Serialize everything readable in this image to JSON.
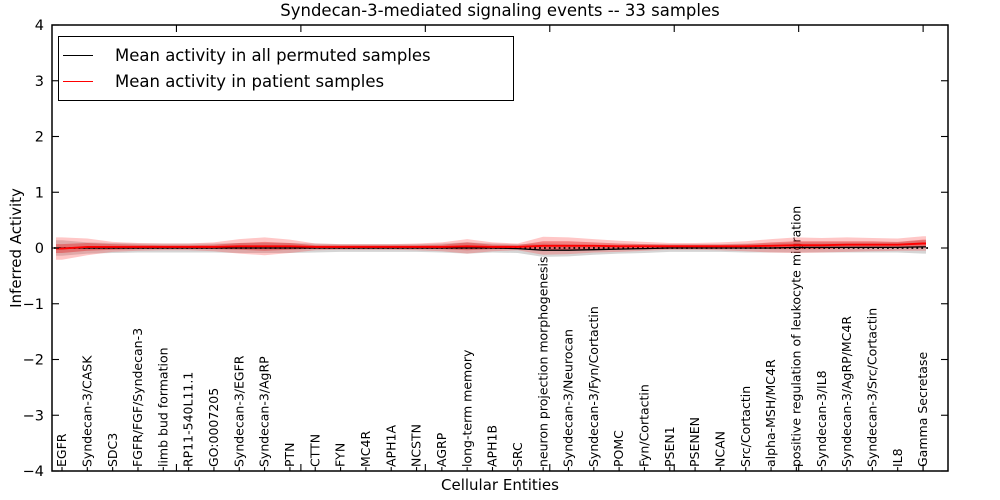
{
  "chart_data": {
    "type": "line",
    "title": "Syndecan-3-mediated signaling events -- 33 samples",
    "xlabel": "Cellular Entities",
    "ylabel": "Inferred Activity",
    "ylim": [
      -4,
      4
    ],
    "xlim": [
      0,
      36
    ],
    "yticks": [
      4,
      3,
      2,
      1,
      0,
      -1,
      -2,
      -3,
      -4
    ],
    "ytick_labels": [
      "4",
      "3",
      "2",
      "1",
      "0",
      "−1",
      "−2",
      "−3",
      "−4"
    ],
    "xticks": [
      5,
      10,
      15,
      20,
      25,
      30,
      35
    ],
    "grid": false,
    "legend_position": "upper left",
    "categories": [
      "EGFR",
      "Syndecan-3/CASK",
      "SDC3",
      "FGFR/FGF/Syndecan-3",
      "limb bud formation",
      "RP11-540L11.1",
      "GO:0007205",
      "Syndecan-3/EGFR",
      "Syndecan-3/AgRP",
      "PTN",
      "CTTN",
      "FYN",
      "MC4R",
      "APH1A",
      "NCSTN",
      "AGRP",
      "long-term memory",
      "APH1B",
      "SRC",
      "neuron projection morphogenesis",
      "Syndecan-3/Neurocan",
      "Syndecan-3/Fyn/Cortactin",
      "POMC",
      "Fyn/Cortactin",
      "PSEN1",
      "PSENEN",
      "NCAN",
      "Src/Cortactin",
      "alpha-MSH/MC4R",
      "positive regulation of leukocyte migration",
      "Syndecan-3/IL8",
      "Syndecan-3/AgRP/MC4R",
      "Syndecan-3/Src/Cortactin",
      "IL8",
      "Gamma Secretase"
    ],
    "series": [
      {
        "name": "Mean activity in all permuted samples",
        "color": "#000000",
        "values": [
          0.0,
          0.0,
          0.0,
          0.0,
          0.0,
          0.0,
          0.0,
          0.0,
          0.0,
          0.0,
          0.0,
          0.0,
          0.0,
          0.0,
          0.0,
          0.0,
          0.0,
          0.0,
          -0.01,
          -0.04,
          -0.04,
          -0.03,
          -0.02,
          -0.01,
          0.0,
          0.0,
          0.0,
          0.0,
          0.0,
          0.01,
          0.01,
          0.01,
          0.01,
          0.01,
          0.02
        ]
      },
      {
        "name": "Mean activity in patient samples",
        "color": "#ff0000",
        "values": [
          -0.01,
          0.02,
          0.02,
          0.02,
          0.02,
          0.02,
          0.02,
          0.03,
          0.03,
          0.03,
          0.02,
          0.02,
          0.02,
          0.02,
          0.02,
          0.02,
          0.03,
          0.02,
          0.02,
          0.04,
          0.04,
          0.04,
          0.03,
          0.03,
          0.03,
          0.03,
          0.03,
          0.03,
          0.04,
          0.05,
          0.05,
          0.06,
          0.06,
          0.06,
          0.08
        ]
      }
    ],
    "bands": [
      {
        "name": "permuted-samples-spread",
        "center_series": 0,
        "color": "rgba(125,125,125,0.32)",
        "half_widths": [
          0.14,
          0.1,
          0.09,
          0.08,
          0.08,
          0.08,
          0.08,
          0.09,
          0.09,
          0.09,
          0.08,
          0.07,
          0.07,
          0.07,
          0.07,
          0.08,
          0.1,
          0.08,
          0.08,
          0.12,
          0.11,
          0.09,
          0.08,
          0.08,
          0.07,
          0.07,
          0.07,
          0.08,
          0.08,
          0.09,
          0.09,
          0.09,
          0.09,
          0.09,
          0.12
        ]
      },
      {
        "name": "patient-samples-spread-outer",
        "center_series": 1,
        "color": "rgba(255,55,55,0.28)",
        "half_widths": [
          0.2,
          0.15,
          0.09,
          0.07,
          0.06,
          0.06,
          0.08,
          0.13,
          0.16,
          0.12,
          0.06,
          0.05,
          0.05,
          0.05,
          0.06,
          0.08,
          0.13,
          0.08,
          0.06,
          0.16,
          0.15,
          0.12,
          0.1,
          0.08,
          0.06,
          0.06,
          0.07,
          0.09,
          0.12,
          0.14,
          0.13,
          0.13,
          0.12,
          0.11,
          0.13
        ]
      },
      {
        "name": "patient-samples-spread-inner",
        "center_series": 1,
        "color": "rgba(225,35,35,0.42)",
        "half_widths": [
          0.08,
          0.07,
          0.05,
          0.04,
          0.03,
          0.03,
          0.04,
          0.06,
          0.08,
          0.06,
          0.03,
          0.03,
          0.03,
          0.03,
          0.03,
          0.04,
          0.07,
          0.04,
          0.03,
          0.08,
          0.08,
          0.06,
          0.05,
          0.04,
          0.03,
          0.03,
          0.03,
          0.04,
          0.06,
          0.07,
          0.07,
          0.06,
          0.06,
          0.05,
          0.07
        ]
      }
    ],
    "zero_line": {
      "y": 0,
      "style": "dotted",
      "color": "#000000"
    }
  }
}
